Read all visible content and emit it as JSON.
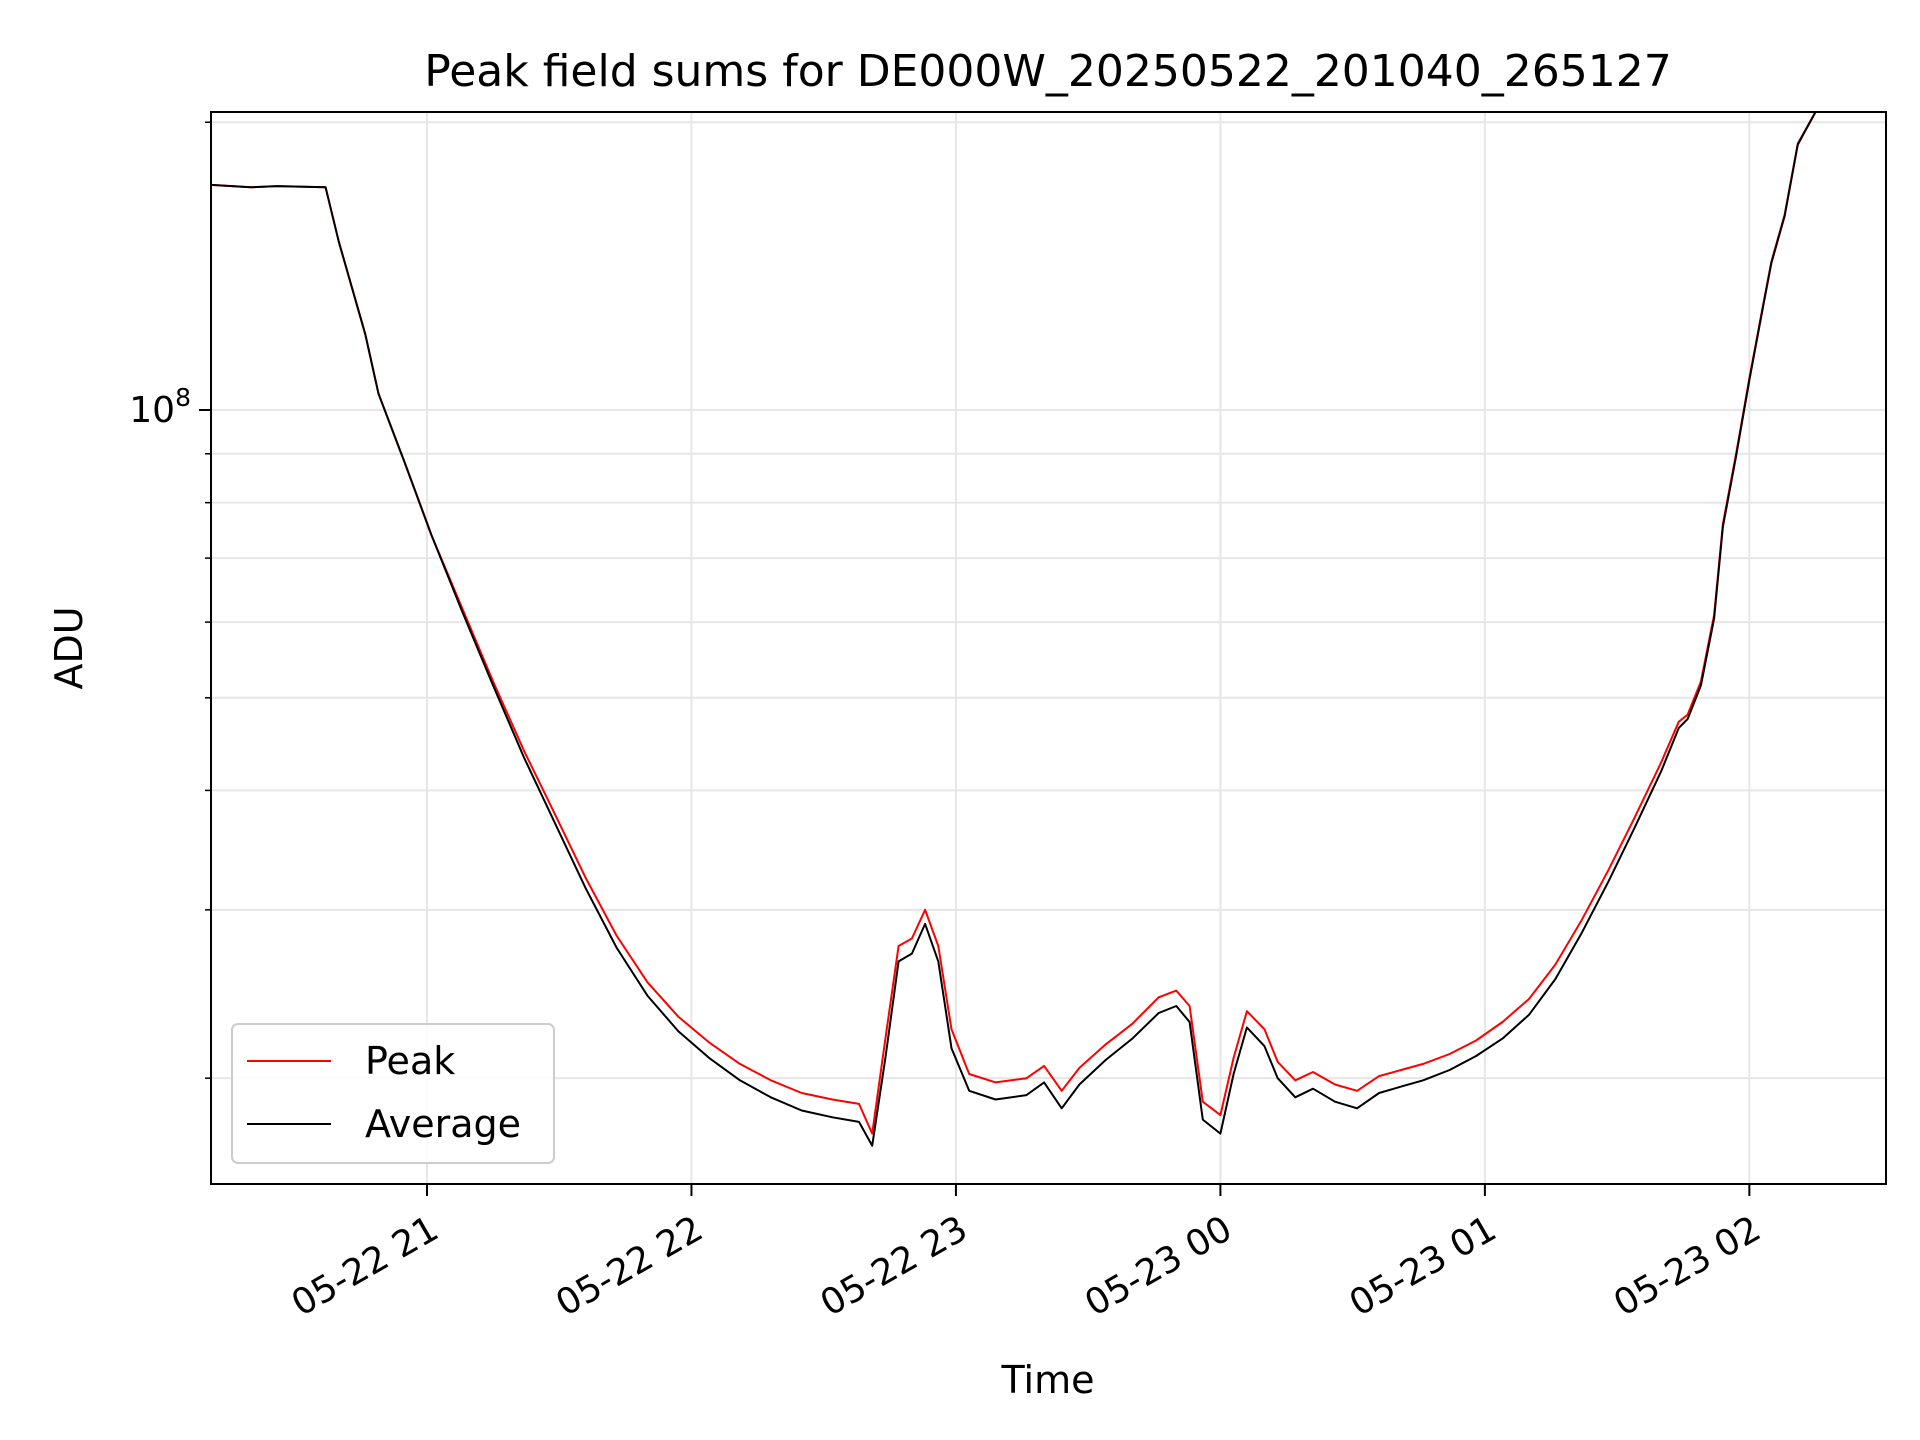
{
  "chart_data": {
    "type": "line",
    "title": "Peak field sums for DE000W_20250522_201040_265127",
    "xlabel": "Time",
    "ylabel": "ADU",
    "y_scale": "log",
    "ylim": [
      15500000,
      205000000
    ],
    "xlim": [
      "2025-05-22 20:11",
      "2025-05-23 02:31"
    ],
    "x_ticks": [
      {
        "t": "2025-05-22 21:00",
        "label": "05-22 21"
      },
      {
        "t": "2025-05-22 22:00",
        "label": "05-22 22"
      },
      {
        "t": "2025-05-22 23:00",
        "label": "05-22 23"
      },
      {
        "t": "2025-05-23 00:00",
        "label": "05-23 00"
      },
      {
        "t": "2025-05-23 01:00",
        "label": "05-23 01"
      },
      {
        "t": "2025-05-23 02:00",
        "label": "05-23 02"
      }
    ],
    "y_major_ticks": [
      {
        "value": 100000000,
        "label": "10",
        "exp": "8"
      }
    ],
    "y_minor_ticks": [
      20000000,
      30000000,
      40000000,
      50000000,
      60000000,
      70000000,
      80000000,
      90000000,
      200000000
    ],
    "grid": true,
    "legend_position": "lower-left",
    "series": [
      {
        "name": "Peak",
        "color": "#ff0000",
        "points": [
          [
            "2025-05-22 20:11",
            172000000
          ],
          [
            "2025-05-22 20:20",
            171000000
          ],
          [
            "2025-05-22 20:26",
            171500000
          ],
          [
            "2025-05-22 20:37",
            171000000
          ],
          [
            "2025-05-22 20:40",
            150000000
          ],
          [
            "2025-05-22 20:46",
            120000000
          ],
          [
            "2025-05-22 20:49",
            104000000
          ],
          [
            "2025-05-22 20:55",
            88000000
          ],
          [
            "2025-05-22 21:01",
            74000000
          ],
          [
            "2025-05-22 21:08",
            62000000
          ],
          [
            "2025-05-22 21:15",
            52000000
          ],
          [
            "2025-05-22 21:22",
            44000000
          ],
          [
            "2025-05-22 21:29",
            37800000
          ],
          [
            "2025-05-22 21:36",
            32400000
          ],
          [
            "2025-05-22 21:43",
            28200000
          ],
          [
            "2025-05-22 21:50",
            25200000
          ],
          [
            "2025-05-22 21:57",
            23200000
          ],
          [
            "2025-05-22 22:04",
            21800000
          ],
          [
            "2025-05-22 22:11",
            20700000
          ],
          [
            "2025-05-22 22:18",
            19900000
          ],
          [
            "2025-05-22 22:25",
            19300000
          ],
          [
            "2025-05-22 22:32",
            19000000
          ],
          [
            "2025-05-22 22:38",
            18800000
          ],
          [
            "2025-05-22 22:41",
            17500000
          ],
          [
            "2025-05-22 22:44",
            22000000
          ],
          [
            "2025-05-22 22:47",
            27500000
          ],
          [
            "2025-05-22 22:50",
            28000000
          ],
          [
            "2025-05-22 22:53",
            30000000
          ],
          [
            "2025-05-22 22:56",
            27500000
          ],
          [
            "2025-05-22 22:59",
            22500000
          ],
          [
            "2025-05-22 23:03",
            20200000
          ],
          [
            "2025-05-22 23:09",
            19800000
          ],
          [
            "2025-05-22 23:16",
            20000000
          ],
          [
            "2025-05-22 23:20",
            20600000
          ],
          [
            "2025-05-22 23:24",
            19400000
          ],
          [
            "2025-05-22 23:28",
            20500000
          ],
          [
            "2025-05-22 23:34",
            21700000
          ],
          [
            "2025-05-22 23:40",
            22800000
          ],
          [
            "2025-05-22 23:46",
            24300000
          ],
          [
            "2025-05-22 23:50",
            24700000
          ],
          [
            "2025-05-22 23:53",
            23800000
          ],
          [
            "2025-05-22 23:56",
            18900000
          ],
          [
            "2025-05-23 00:00",
            18300000
          ],
          [
            "2025-05-23 00:03",
            21000000
          ],
          [
            "2025-05-23 00:06",
            23500000
          ],
          [
            "2025-05-23 00:10",
            22500000
          ],
          [
            "2025-05-23 00:13",
            20800000
          ],
          [
            "2025-05-23 00:17",
            19900000
          ],
          [
            "2025-05-23 00:21",
            20300000
          ],
          [
            "2025-05-23 00:26",
            19700000
          ],
          [
            "2025-05-23 00:31",
            19400000
          ],
          [
            "2025-05-23 00:36",
            20100000
          ],
          [
            "2025-05-23 00:41",
            20400000
          ],
          [
            "2025-05-23 00:46",
            20700000
          ],
          [
            "2025-05-23 00:52",
            21200000
          ],
          [
            "2025-05-23 00:58",
            21900000
          ],
          [
            "2025-05-23 01:04",
            22900000
          ],
          [
            "2025-05-23 01:10",
            24200000
          ],
          [
            "2025-05-23 01:16",
            26300000
          ],
          [
            "2025-05-23 01:22",
            29300000
          ],
          [
            "2025-05-23 01:28",
            33000000
          ],
          [
            "2025-05-23 01:34",
            37500000
          ],
          [
            "2025-05-23 01:40",
            42800000
          ],
          [
            "2025-05-23 01:44",
            47200000
          ],
          [
            "2025-05-23 01:46",
            48000000
          ],
          [
            "2025-05-23 01:49",
            52000000
          ],
          [
            "2025-05-23 01:52",
            61000000
          ],
          [
            "2025-05-23 01:54",
            76000000
          ],
          [
            "2025-05-23 01:57",
            90000000
          ],
          [
            "2025-05-23 02:00",
            108000000
          ],
          [
            "2025-05-23 02:03",
            128000000
          ],
          [
            "2025-05-23 02:05",
            143000000
          ],
          [
            "2025-05-23 02:08",
            160000000
          ],
          [
            "2025-05-23 02:11",
            190000000
          ],
          [
            "2025-05-23 02:15",
            205000000
          ]
        ]
      },
      {
        "name": "Average",
        "color": "#000000",
        "points": [
          [
            "2025-05-22 20:11",
            172000000
          ],
          [
            "2025-05-22 20:20",
            171000000
          ],
          [
            "2025-05-22 20:26",
            171500000
          ],
          [
            "2025-05-22 20:37",
            171000000
          ],
          [
            "2025-05-22 20:40",
            150000000
          ],
          [
            "2025-05-22 20:46",
            120000000
          ],
          [
            "2025-05-22 20:49",
            104000000
          ],
          [
            "2025-05-22 20:55",
            88000000
          ],
          [
            "2025-05-22 21:01",
            74000000
          ],
          [
            "2025-05-22 21:08",
            61500000
          ],
          [
            "2025-05-22 21:15",
            51500000
          ],
          [
            "2025-05-22 21:22",
            43300000
          ],
          [
            "2025-05-22 21:29",
            37000000
          ],
          [
            "2025-05-22 21:36",
            31600000
          ],
          [
            "2025-05-22 21:43",
            27400000
          ],
          [
            "2025-05-22 21:50",
            24400000
          ],
          [
            "2025-05-22 21:57",
            22400000
          ],
          [
            "2025-05-22 22:04",
            21000000
          ],
          [
            "2025-05-22 22:11",
            19900000
          ],
          [
            "2025-05-22 22:18",
            19100000
          ],
          [
            "2025-05-22 22:25",
            18500000
          ],
          [
            "2025-05-22 22:32",
            18200000
          ],
          [
            "2025-05-22 22:38",
            18000000
          ],
          [
            "2025-05-22 22:41",
            17000000
          ],
          [
            "2025-05-22 22:44",
            21000000
          ],
          [
            "2025-05-22 22:47",
            26500000
          ],
          [
            "2025-05-22 22:50",
            27000000
          ],
          [
            "2025-05-22 22:53",
            29000000
          ],
          [
            "2025-05-22 22:56",
            26500000
          ],
          [
            "2025-05-22 22:59",
            21500000
          ],
          [
            "2025-05-22 23:03",
            19400000
          ],
          [
            "2025-05-22 23:09",
            19000000
          ],
          [
            "2025-05-22 23:16",
            19200000
          ],
          [
            "2025-05-22 23:20",
            19800000
          ],
          [
            "2025-05-22 23:24",
            18600000
          ],
          [
            "2025-05-22 23:28",
            19700000
          ],
          [
            "2025-05-22 23:34",
            20900000
          ],
          [
            "2025-05-22 23:40",
            22000000
          ],
          [
            "2025-05-22 23:46",
            23400000
          ],
          [
            "2025-05-22 23:50",
            23800000
          ],
          [
            "2025-05-22 23:53",
            22900000
          ],
          [
            "2025-05-22 23:56",
            18100000
          ],
          [
            "2025-05-23 00:00",
            17500000
          ],
          [
            "2025-05-23 00:03",
            20200000
          ],
          [
            "2025-05-23 00:06",
            22600000
          ],
          [
            "2025-05-23 00:10",
            21600000
          ],
          [
            "2025-05-23 00:13",
            20000000
          ],
          [
            "2025-05-23 00:17",
            19100000
          ],
          [
            "2025-05-23 00:21",
            19500000
          ],
          [
            "2025-05-23 00:26",
            18900000
          ],
          [
            "2025-05-23 00:31",
            18600000
          ],
          [
            "2025-05-23 00:36",
            19300000
          ],
          [
            "2025-05-23 00:41",
            19600000
          ],
          [
            "2025-05-23 00:46",
            19900000
          ],
          [
            "2025-05-23 00:52",
            20400000
          ],
          [
            "2025-05-23 00:58",
            21100000
          ],
          [
            "2025-05-23 01:04",
            22000000
          ],
          [
            "2025-05-23 01:10",
            23300000
          ],
          [
            "2025-05-23 01:16",
            25400000
          ],
          [
            "2025-05-23 01:22",
            28400000
          ],
          [
            "2025-05-23 01:28",
            32100000
          ],
          [
            "2025-05-23 01:34",
            36600000
          ],
          [
            "2025-05-23 01:40",
            41900000
          ],
          [
            "2025-05-23 01:44",
            46500000
          ],
          [
            "2025-05-23 01:46",
            47500000
          ],
          [
            "2025-05-23 01:49",
            51500000
          ],
          [
            "2025-05-23 01:52",
            60500000
          ],
          [
            "2025-05-23 01:54",
            75500000
          ],
          [
            "2025-05-23 01:57",
            89500000
          ],
          [
            "2025-05-23 02:00",
            107500000
          ],
          [
            "2025-05-23 02:03",
            127500000
          ],
          [
            "2025-05-23 02:05",
            142500000
          ],
          [
            "2025-05-23 02:08",
            159500000
          ],
          [
            "2025-05-23 02:11",
            189500000
          ],
          [
            "2025-05-23 02:15",
            205000000
          ]
        ]
      }
    ]
  }
}
